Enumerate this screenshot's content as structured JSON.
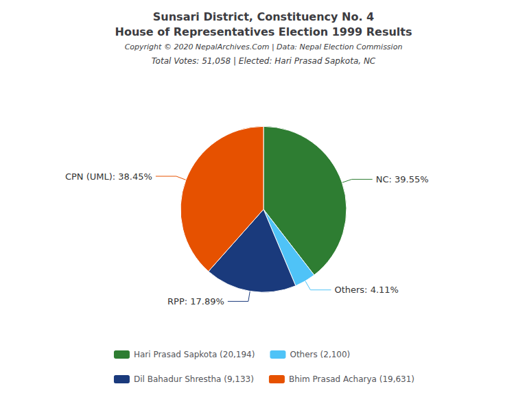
{
  "chart_data": {
    "type": "pie",
    "title": "Sunsari District, Constituency No. 4\nHouse of Representatives Election 1999 Results",
    "annotations": [
      "Copyright © 2020 NepalArchives.Com | Data: Nepal Election Commission"
    ],
    "subtitle": "Total Votes: 51,058 | Elected: Hari Prasad Sapkota, NC",
    "categories": [
      "Hari Prasad Sapkota (20,194)",
      "Others (2,100)",
      "Dil Bahadur Shrestha (9,133)",
      "Bhim Prasad Acharya (19,631)"
    ],
    "values": [
      39.55,
      4.11,
      17.89,
      38.45
    ],
    "value_labels": [
      "NC: 39.55%",
      "Others: 4.11%",
      "RPP: 17.89%",
      "CPN (UML): 38.45%"
    ],
    "colors": [
      "#2e7d32",
      "#4fc3f7",
      "#1a3a7c",
      "#e65100"
    ],
    "data_labels": true,
    "legend": "bottom"
  }
}
